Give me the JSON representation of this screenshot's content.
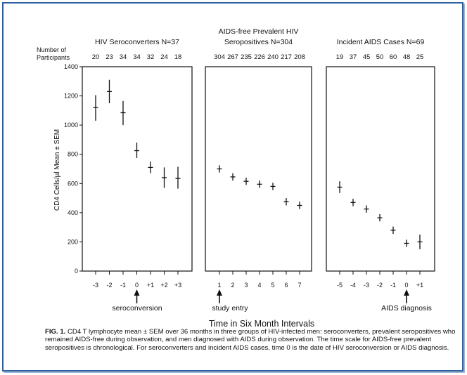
{
  "figure": {
    "xlabel_common": "Time in Six Month Intervals",
    "participants_label_line1": "Number of",
    "participants_label_line2": "Participants",
    "caption_lead": "FIG. 1.",
    "caption_text": "CD4 T lymphocyte mean ± SEM over 36 months in three groups of HIV-infected men: seroconverters, prevalent seropositives who remained AIDS-free during observation, and men diagnosed with AIDS during observation. The time scale for AIDS-free prevalent seropositives is chronological. For seroconverters and incident AIDS cases, time 0 is the date of HIV seroconversion or AIDS diagnosis."
  },
  "chart_data": [
    {
      "type": "scatter",
      "title": "HIV Seroconverters N=37",
      "ylabel": "CD4 Cells/µl Mean ± SEM",
      "ylim": [
        0,
        1400
      ],
      "yticks": [
        0,
        200,
        400,
        600,
        800,
        1000,
        1200,
        1400
      ],
      "x": [
        "-3",
        "-2",
        "-1",
        "0",
        "+1",
        "+2",
        "+3"
      ],
      "participants": [
        "20",
        "23",
        "34",
        "34",
        "32",
        "24",
        "18"
      ],
      "series": [
        {
          "mean": [
            1120,
            1230,
            1085,
            825,
            710,
            640,
            635
          ],
          "sem_low": [
            1030,
            1150,
            1000,
            775,
            670,
            570,
            565
          ],
          "sem_high": [
            1205,
            1310,
            1165,
            880,
            750,
            710,
            715
          ]
        }
      ],
      "annotation": "seroconversion",
      "annotation_x": "0",
      "grid": false
    },
    {
      "type": "scatter",
      "title": "AIDS-free Prevalent HIV Seropositives N=304",
      "title_line1": "AIDS-free Prevalent HIV",
      "title_line2": "Seropositives N=304",
      "ylim": [
        0,
        1400
      ],
      "x": [
        "1",
        "2",
        "3",
        "4",
        "5",
        "6",
        "7"
      ],
      "participants": [
        "304",
        "267",
        "235",
        "226",
        "240",
        "217",
        "208"
      ],
      "series": [
        {
          "mean": [
            700,
            645,
            615,
            595,
            580,
            475,
            450
          ],
          "sem_low": [
            675,
            620,
            590,
            570,
            555,
            450,
            425
          ],
          "sem_high": [
            725,
            670,
            640,
            620,
            605,
            500,
            475
          ]
        }
      ],
      "annotation": "study entry",
      "annotation_x": "1",
      "grid": false
    },
    {
      "type": "scatter",
      "title": "Incident AIDS Cases N=69",
      "ylim": [
        0,
        1400
      ],
      "x": [
        "-5",
        "-4",
        "-3",
        "-2",
        "-1",
        "0",
        "+1"
      ],
      "participants": [
        "19",
        "37",
        "45",
        "50",
        "60",
        "48",
        "25"
      ],
      "series": [
        {
          "mean": [
            575,
            470,
            425,
            365,
            280,
            190,
            200
          ],
          "sem_low": [
            535,
            445,
            400,
            340,
            255,
            165,
            150
          ],
          "sem_high": [
            615,
            495,
            450,
            390,
            305,
            215,
            250
          ]
        }
      ],
      "annotation": "AIDS diagnosis",
      "annotation_x": "0",
      "grid": false
    }
  ]
}
